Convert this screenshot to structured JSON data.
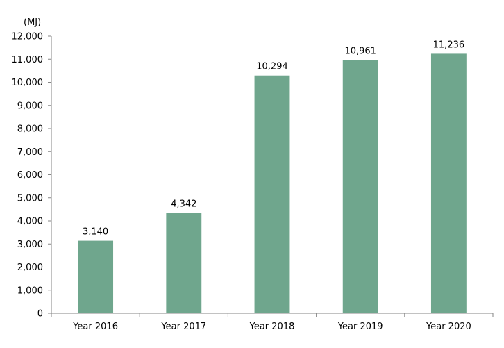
{
  "chart_data": {
    "type": "bar",
    "unit_label": "(MJ)",
    "categories": [
      "Year 2016",
      "Year 2017",
      "Year 2018",
      "Year 2019",
      "Year 2020"
    ],
    "values": [
      3140,
      4342,
      10294,
      10961,
      11236
    ],
    "data_labels": [
      "3,140",
      "4,342",
      "10,294",
      "10,961",
      "11,236"
    ],
    "y_ticks": [
      "0",
      "1,000",
      "2,000",
      "3,000",
      "4,000",
      "5,000",
      "6,000",
      "7,000",
      "8,000",
      "9,000",
      "10,000",
      "11,000",
      "12,000"
    ],
    "ylim": [
      0,
      12000
    ],
    "grid": false,
    "colors": {
      "bar": "#6fa68d",
      "axis": "#868686",
      "text": "#000000"
    }
  }
}
